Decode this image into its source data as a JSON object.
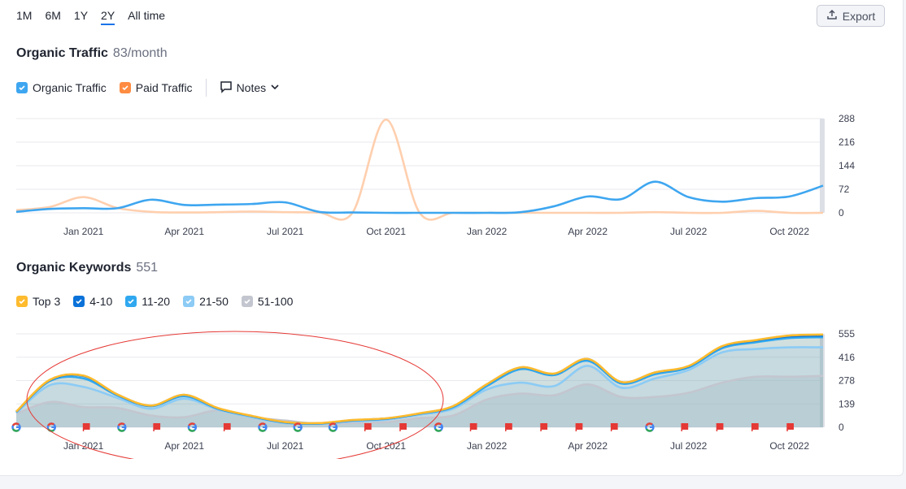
{
  "periods": [
    {
      "label": "1M",
      "active": false
    },
    {
      "label": "6M",
      "active": false
    },
    {
      "label": "1Y",
      "active": false
    },
    {
      "label": "2Y",
      "active": true
    },
    {
      "label": "All time",
      "active": false
    }
  ],
  "export": {
    "label": "Export",
    "icon": "upload-icon"
  },
  "organic_traffic": {
    "title": "Organic Traffic",
    "metric": "83/month",
    "legend": [
      {
        "label": "Organic Traffic",
        "color": "#3ea6f0",
        "checked": true
      },
      {
        "label": "Paid Traffic",
        "color": "#ff8c42",
        "checked": true
      }
    ],
    "notes_label": "Notes"
  },
  "organic_keywords": {
    "title": "Organic Keywords",
    "metric": "551",
    "legend": [
      {
        "label": "Top 3",
        "color": "#ffbb2e",
        "checked": true
      },
      {
        "label": "4-10",
        "color": "#0a72d9",
        "checked": true
      },
      {
        "label": "11-20",
        "color": "#2fa8f0",
        "checked": true
      },
      {
        "label": "21-50",
        "color": "#8ccbf5",
        "checked": true
      },
      {
        "label": "51-100",
        "color": "#c3c6cf",
        "checked": true
      }
    ]
  },
  "colors": {
    "accent": "#1a73e8",
    "annotation_ellipse": "#e53935",
    "flag": "#e53935"
  },
  "chart_data": [
    {
      "type": "line",
      "title": "Organic Traffic",
      "xlabels": [
        "Jan 2021",
        "Apr 2021",
        "Jul 2021",
        "Oct 2021",
        "Jan 2022",
        "Apr 2022",
        "Jul 2022",
        "Oct 2022"
      ],
      "yticks": [
        "288",
        "216",
        "144",
        "72",
        "0"
      ],
      "ylim": [
        0,
        288
      ],
      "x_months": [
        0,
        1,
        2,
        3,
        4,
        5,
        6,
        7,
        8,
        9,
        10,
        11,
        12,
        13,
        14,
        15,
        16,
        17,
        18,
        19,
        20,
        21,
        22,
        23,
        24
      ],
      "series": [
        {
          "name": "Organic Traffic",
          "color": "#3ea6f0",
          "values": [
            3,
            12,
            14,
            14,
            40,
            24,
            25,
            27,
            32,
            3,
            1,
            0,
            0,
            0,
            0,
            2,
            20,
            50,
            42,
            95,
            48,
            34,
            45,
            50,
            83
          ]
        },
        {
          "name": "Paid Traffic",
          "color": "#ffcfae",
          "values": [
            8,
            18,
            48,
            15,
            3,
            1,
            2,
            4,
            2,
            1,
            0,
            285,
            0,
            0,
            0,
            0,
            0,
            0,
            0,
            2,
            0,
            0,
            6,
            0,
            0
          ]
        }
      ]
    },
    {
      "type": "area",
      "title": "Organic Keywords",
      "xlabels": [
        "Jan 2021",
        "Apr 2021",
        "Jul 2021",
        "Oct 2021",
        "Jan 2022",
        "Apr 2022",
        "Jul 2022",
        "Oct 2022"
      ],
      "yticks": [
        "555",
        "416",
        "278",
        "139",
        "0"
      ],
      "ylim": [
        0,
        555
      ],
      "x_months": [
        0,
        1,
        2,
        3,
        4,
        5,
        6,
        7,
        8,
        9,
        10,
        11,
        12,
        13,
        14,
        15,
        16,
        17,
        18,
        19,
        20,
        21,
        22,
        23,
        24
      ],
      "series": [
        {
          "name": "51-100",
          "color": "#c3c6cf",
          "values": [
            80,
            150,
            120,
            115,
            70,
            60,
            100,
            60,
            40,
            20,
            25,
            30,
            55,
            70,
            165,
            200,
            190,
            255,
            180,
            180,
            205,
            265,
            300,
            300,
            305
          ]
        },
        {
          "name": "21-50",
          "color": "#8ccbf5",
          "values": [
            85,
            250,
            240,
            175,
            110,
            170,
            105,
            60,
            25,
            20,
            35,
            45,
            75,
            110,
            225,
            265,
            245,
            365,
            235,
            290,
            340,
            445,
            465,
            475,
            475
          ]
        },
        {
          "name": "11-20",
          "color": "#2fa8f0",
          "values": [
            90,
            275,
            290,
            190,
            125,
            185,
            110,
            65,
            28,
            22,
            40,
            50,
            80,
            120,
            245,
            345,
            310,
            395,
            260,
            315,
            355,
            470,
            505,
            530,
            535
          ]
        },
        {
          "name": "4-10",
          "color": "#0a72d9",
          "values": [
            92,
            280,
            305,
            195,
            128,
            192,
            113,
            67,
            30,
            24,
            42,
            52,
            82,
            125,
            255,
            355,
            318,
            405,
            268,
            325,
            362,
            480,
            515,
            540,
            545
          ]
        },
        {
          "name": "Top 3",
          "color": "#ffbb2e",
          "values": [
            93,
            282,
            307,
            196,
            129,
            193,
            114,
            68,
            31,
            25,
            43,
            53,
            83,
            126,
            256,
            356,
            319,
            406,
            269,
            326,
            364,
            482,
            518,
            545,
            551
          ]
        }
      ],
      "annotations": [
        "google",
        "google",
        "flag",
        "google",
        "flag",
        "google",
        "flag",
        "google",
        "google",
        "google",
        "flag",
        "flag",
        "google",
        "flag",
        "flag",
        "flag",
        "flag",
        "flag",
        "google",
        "flag",
        "flag",
        "flag",
        "flag"
      ]
    }
  ]
}
